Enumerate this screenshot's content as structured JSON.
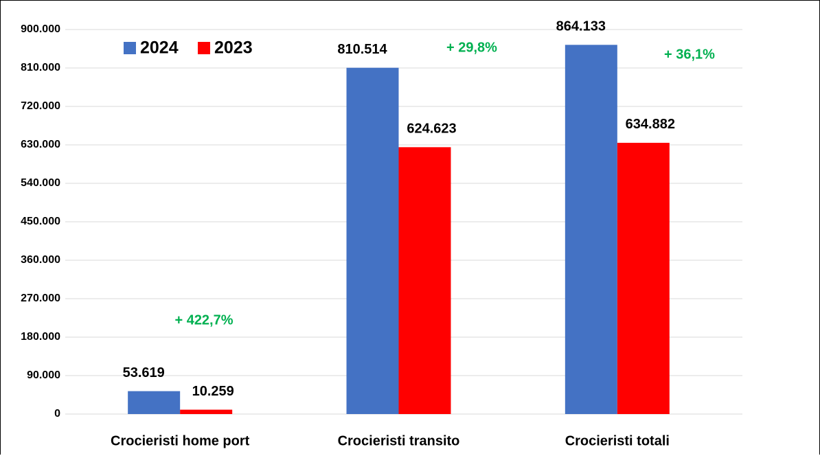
{
  "chart_data": {
    "type": "bar",
    "categories": [
      "Crocieristi home port",
      "Crocieristi transito",
      "Crocieristi totali"
    ],
    "series": [
      {
        "name": "2024",
        "color": "#4472c4",
        "values": [
          53619,
          810514,
          864133
        ],
        "value_labels": [
          "53.619",
          "810.514",
          "864.133"
        ]
      },
      {
        "name": "2023",
        "color": "#ff0000",
        "values": [
          10259,
          624623,
          634882
        ],
        "value_labels": [
          "10.259",
          "624.623",
          "634.882"
        ]
      }
    ],
    "annotations": [
      "+ 422,7%",
      "+ 29,8%",
      "+ 36,1%"
    ],
    "annotation_color": "#00b050",
    "ylim": [
      0,
      900000
    ],
    "yticks": [
      {
        "value": 0,
        "label": "0"
      },
      {
        "value": 90000,
        "label": "90.000"
      },
      {
        "value": 180000,
        "label": "180.000"
      },
      {
        "value": 270000,
        "label": "270.000"
      },
      {
        "value": 360000,
        "label": "360.000"
      },
      {
        "value": 450000,
        "label": "450.000"
      },
      {
        "value": 540000,
        "label": "540.000"
      },
      {
        "value": 630000,
        "label": "630.000"
      },
      {
        "value": 720000,
        "label": "720.000"
      },
      {
        "value": 810000,
        "label": "810.000"
      },
      {
        "value": 900000,
        "label": "900.000"
      }
    ],
    "grid": true,
    "legend": "top-left"
  }
}
